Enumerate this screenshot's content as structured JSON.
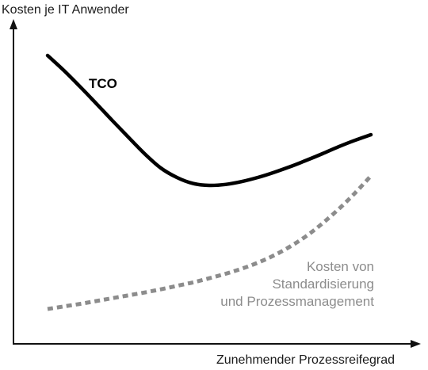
{
  "chart_data": {
    "type": "line",
    "title": "",
    "xlabel": "Zunehmender Prozessreifegrad",
    "ylabel": "Kosten je IT Anwender",
    "grid": false,
    "legend": "none",
    "xlim": [
      0,
      10
    ],
    "ylim": [
      0,
      10
    ],
    "series": [
      {
        "name": "TCO",
        "label_lines": [
          "TCO"
        ],
        "color": "#000000",
        "style": "solid",
        "x": [
          0.0,
          0.5,
          1.0,
          1.5,
          2.0,
          2.5,
          3.0,
          3.5,
          4.0,
          4.5,
          5.0,
          5.5,
          6.0,
          6.5,
          7.0,
          7.5,
          8.0,
          8.5,
          9.0,
          9.5,
          10.0
        ],
        "y": [
          9.0,
          8.53,
          8.02,
          7.49,
          6.95,
          6.42,
          5.9,
          5.45,
          5.15,
          4.96,
          4.9,
          4.93,
          5.02,
          5.15,
          5.31,
          5.49,
          5.69,
          5.9,
          6.12,
          6.32,
          6.5
        ]
      },
      {
        "name": "Kosten von Standardisierung und Prozessmanagement",
        "label_lines": [
          "Kosten von",
          "Standardisierung",
          "und Prozessmanagement"
        ],
        "color": "#8c8c8c",
        "style": "dashed",
        "x": [
          0.0,
          0.5,
          1.0,
          1.5,
          2.0,
          2.5,
          3.0,
          3.5,
          4.0,
          4.5,
          5.0,
          5.5,
          6.0,
          6.5,
          7.0,
          7.5,
          8.0,
          8.5,
          9.0,
          9.5,
          10.0
        ],
        "y": [
          1.0,
          1.08,
          1.16,
          1.25,
          1.34,
          1.43,
          1.52,
          1.62,
          1.73,
          1.84,
          1.97,
          2.11,
          2.27,
          2.46,
          2.69,
          2.97,
          3.3,
          3.7,
          4.15,
          4.65,
          5.2
        ]
      }
    ]
  }
}
